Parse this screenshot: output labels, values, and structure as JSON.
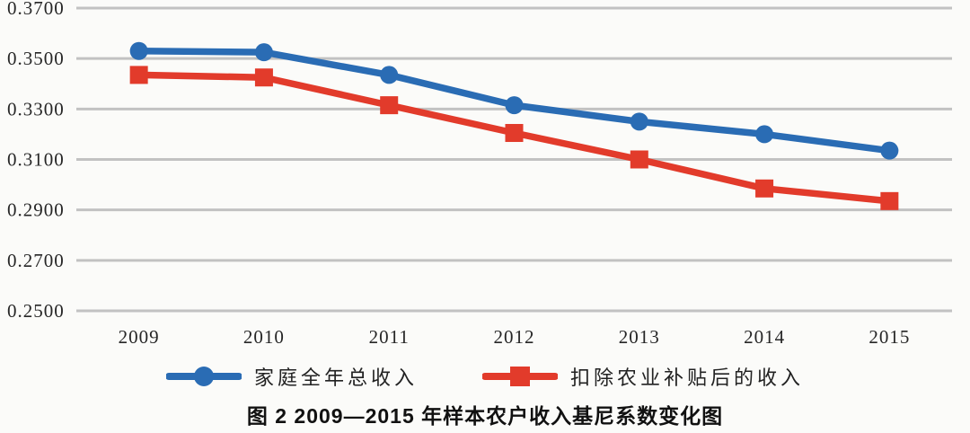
{
  "figure": {
    "caption": "图 2  2009—2015 年样本农户收入基尼系数变化图"
  },
  "colors": {
    "series_blue": "#2a6cb4",
    "series_red": "#e23b2b",
    "gridline": "#c2c2c2",
    "tick_text": "#262626"
  },
  "chart_data": {
    "type": "line",
    "title": "",
    "xlabel": "",
    "ylabel": "",
    "categories": [
      "2009",
      "2010",
      "2011",
      "2012",
      "2013",
      "2014",
      "2015"
    ],
    "series": [
      {
        "name": "家庭全年总收入",
        "color": "#2a6cb4",
        "marker": "circle",
        "values": [
          0.353,
          0.3525,
          0.3435,
          0.3315,
          0.325,
          0.32,
          0.3135
        ]
      },
      {
        "name": "扣除农业补贴后的收入",
        "color": "#e23b2b",
        "marker": "square",
        "values": [
          0.3435,
          0.3425,
          0.3315,
          0.3205,
          0.31,
          0.2985,
          0.2935
        ]
      }
    ],
    "ylim": [
      0.25,
      0.37
    ],
    "ytick_step": 0.02,
    "ytick_labels": [
      "0.3700",
      "0.3500",
      "0.3300",
      "0.3100",
      "0.2900",
      "0.2700",
      "0.2500"
    ],
    "grid": true,
    "legend_position": "bottom"
  }
}
